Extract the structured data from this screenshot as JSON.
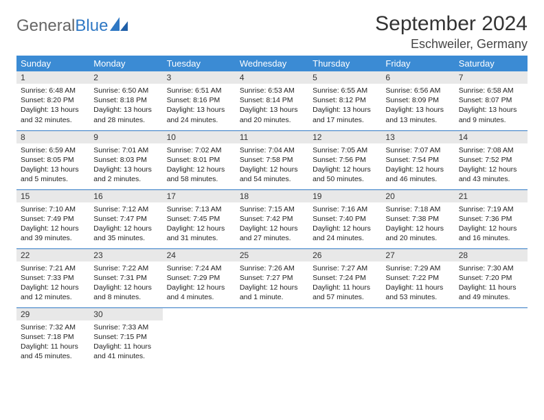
{
  "logo": {
    "text1": "General",
    "text2": "Blue"
  },
  "title": "September 2024",
  "location": "Eschweiler, Germany",
  "colors": {
    "header_bg": "#3b8bd4",
    "header_fg": "#ffffff",
    "daynum_bg": "#e8e8e8",
    "row_border": "#2f78c4",
    "logo_gray": "#666666",
    "logo_blue": "#2f78c4"
  },
  "weekdays": [
    "Sunday",
    "Monday",
    "Tuesday",
    "Wednesday",
    "Thursday",
    "Friday",
    "Saturday"
  ],
  "weeks": [
    [
      {
        "n": "1",
        "sr": "Sunrise: 6:48 AM",
        "ss": "Sunset: 8:20 PM",
        "d1": "Daylight: 13 hours",
        "d2": "and 32 minutes."
      },
      {
        "n": "2",
        "sr": "Sunrise: 6:50 AM",
        "ss": "Sunset: 8:18 PM",
        "d1": "Daylight: 13 hours",
        "d2": "and 28 minutes."
      },
      {
        "n": "3",
        "sr": "Sunrise: 6:51 AM",
        "ss": "Sunset: 8:16 PM",
        "d1": "Daylight: 13 hours",
        "d2": "and 24 minutes."
      },
      {
        "n": "4",
        "sr": "Sunrise: 6:53 AM",
        "ss": "Sunset: 8:14 PM",
        "d1": "Daylight: 13 hours",
        "d2": "and 20 minutes."
      },
      {
        "n": "5",
        "sr": "Sunrise: 6:55 AM",
        "ss": "Sunset: 8:12 PM",
        "d1": "Daylight: 13 hours",
        "d2": "and 17 minutes."
      },
      {
        "n": "6",
        "sr": "Sunrise: 6:56 AM",
        "ss": "Sunset: 8:09 PM",
        "d1": "Daylight: 13 hours",
        "d2": "and 13 minutes."
      },
      {
        "n": "7",
        "sr": "Sunrise: 6:58 AM",
        "ss": "Sunset: 8:07 PM",
        "d1": "Daylight: 13 hours",
        "d2": "and 9 minutes."
      }
    ],
    [
      {
        "n": "8",
        "sr": "Sunrise: 6:59 AM",
        "ss": "Sunset: 8:05 PM",
        "d1": "Daylight: 13 hours",
        "d2": "and 5 minutes."
      },
      {
        "n": "9",
        "sr": "Sunrise: 7:01 AM",
        "ss": "Sunset: 8:03 PM",
        "d1": "Daylight: 13 hours",
        "d2": "and 2 minutes."
      },
      {
        "n": "10",
        "sr": "Sunrise: 7:02 AM",
        "ss": "Sunset: 8:01 PM",
        "d1": "Daylight: 12 hours",
        "d2": "and 58 minutes."
      },
      {
        "n": "11",
        "sr": "Sunrise: 7:04 AM",
        "ss": "Sunset: 7:58 PM",
        "d1": "Daylight: 12 hours",
        "d2": "and 54 minutes."
      },
      {
        "n": "12",
        "sr": "Sunrise: 7:05 AM",
        "ss": "Sunset: 7:56 PM",
        "d1": "Daylight: 12 hours",
        "d2": "and 50 minutes."
      },
      {
        "n": "13",
        "sr": "Sunrise: 7:07 AM",
        "ss": "Sunset: 7:54 PM",
        "d1": "Daylight: 12 hours",
        "d2": "and 46 minutes."
      },
      {
        "n": "14",
        "sr": "Sunrise: 7:08 AM",
        "ss": "Sunset: 7:52 PM",
        "d1": "Daylight: 12 hours",
        "d2": "and 43 minutes."
      }
    ],
    [
      {
        "n": "15",
        "sr": "Sunrise: 7:10 AM",
        "ss": "Sunset: 7:49 PM",
        "d1": "Daylight: 12 hours",
        "d2": "and 39 minutes."
      },
      {
        "n": "16",
        "sr": "Sunrise: 7:12 AM",
        "ss": "Sunset: 7:47 PM",
        "d1": "Daylight: 12 hours",
        "d2": "and 35 minutes."
      },
      {
        "n": "17",
        "sr": "Sunrise: 7:13 AM",
        "ss": "Sunset: 7:45 PM",
        "d1": "Daylight: 12 hours",
        "d2": "and 31 minutes."
      },
      {
        "n": "18",
        "sr": "Sunrise: 7:15 AM",
        "ss": "Sunset: 7:42 PM",
        "d1": "Daylight: 12 hours",
        "d2": "and 27 minutes."
      },
      {
        "n": "19",
        "sr": "Sunrise: 7:16 AM",
        "ss": "Sunset: 7:40 PM",
        "d1": "Daylight: 12 hours",
        "d2": "and 24 minutes."
      },
      {
        "n": "20",
        "sr": "Sunrise: 7:18 AM",
        "ss": "Sunset: 7:38 PM",
        "d1": "Daylight: 12 hours",
        "d2": "and 20 minutes."
      },
      {
        "n": "21",
        "sr": "Sunrise: 7:19 AM",
        "ss": "Sunset: 7:36 PM",
        "d1": "Daylight: 12 hours",
        "d2": "and 16 minutes."
      }
    ],
    [
      {
        "n": "22",
        "sr": "Sunrise: 7:21 AM",
        "ss": "Sunset: 7:33 PM",
        "d1": "Daylight: 12 hours",
        "d2": "and 12 minutes."
      },
      {
        "n": "23",
        "sr": "Sunrise: 7:22 AM",
        "ss": "Sunset: 7:31 PM",
        "d1": "Daylight: 12 hours",
        "d2": "and 8 minutes."
      },
      {
        "n": "24",
        "sr": "Sunrise: 7:24 AM",
        "ss": "Sunset: 7:29 PM",
        "d1": "Daylight: 12 hours",
        "d2": "and 4 minutes."
      },
      {
        "n": "25",
        "sr": "Sunrise: 7:26 AM",
        "ss": "Sunset: 7:27 PM",
        "d1": "Daylight: 12 hours",
        "d2": "and 1 minute."
      },
      {
        "n": "26",
        "sr": "Sunrise: 7:27 AM",
        "ss": "Sunset: 7:24 PM",
        "d1": "Daylight: 11 hours",
        "d2": "and 57 minutes."
      },
      {
        "n": "27",
        "sr": "Sunrise: 7:29 AM",
        "ss": "Sunset: 7:22 PM",
        "d1": "Daylight: 11 hours",
        "d2": "and 53 minutes."
      },
      {
        "n": "28",
        "sr": "Sunrise: 7:30 AM",
        "ss": "Sunset: 7:20 PM",
        "d1": "Daylight: 11 hours",
        "d2": "and 49 minutes."
      }
    ],
    [
      {
        "n": "29",
        "sr": "Sunrise: 7:32 AM",
        "ss": "Sunset: 7:18 PM",
        "d1": "Daylight: 11 hours",
        "d2": "and 45 minutes."
      },
      {
        "n": "30",
        "sr": "Sunrise: 7:33 AM",
        "ss": "Sunset: 7:15 PM",
        "d1": "Daylight: 11 hours",
        "d2": "and 41 minutes."
      },
      {
        "empty": true
      },
      {
        "empty": true
      },
      {
        "empty": true
      },
      {
        "empty": true
      },
      {
        "empty": true
      }
    ]
  ]
}
